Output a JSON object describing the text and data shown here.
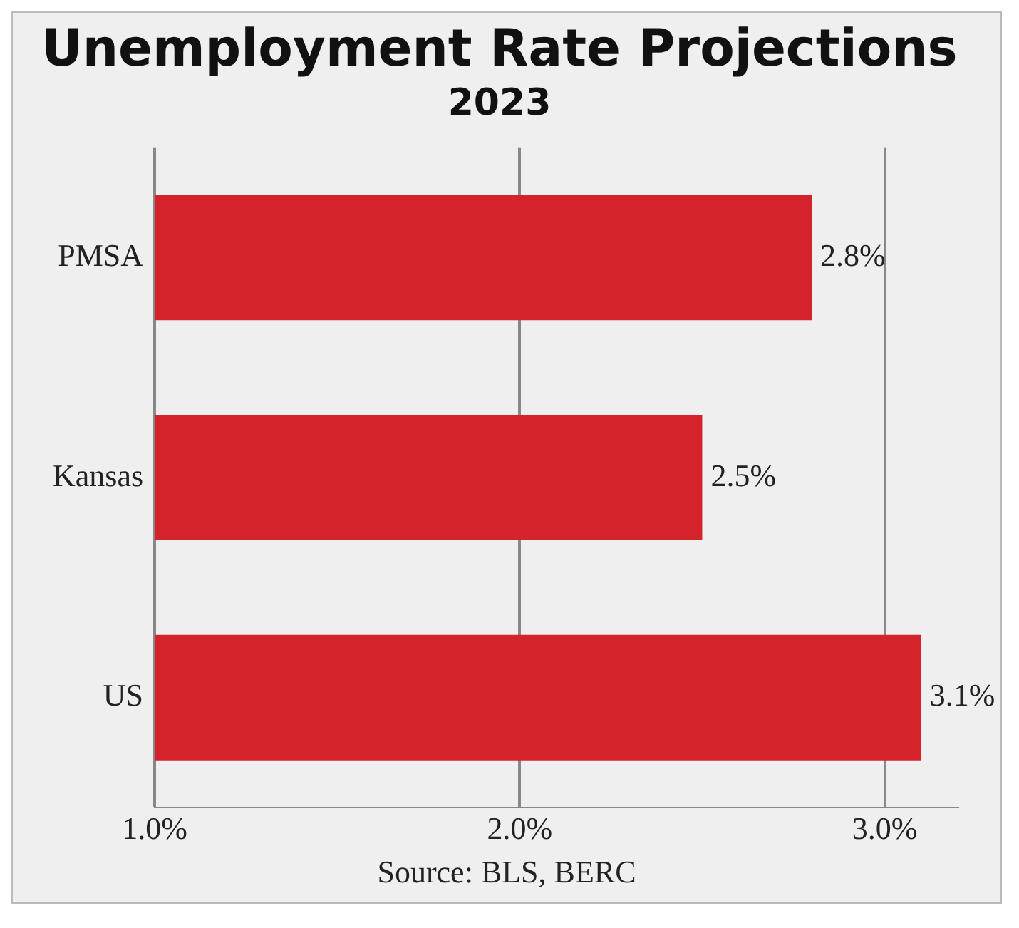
{
  "chart_data": {
    "type": "bar",
    "orientation": "horizontal",
    "title": "Unemployment Rate Projections",
    "subtitle": "2023",
    "categories": [
      "PMSA",
      "Kansas",
      "US"
    ],
    "values": [
      2.8,
      2.5,
      3.1
    ],
    "color": "#d4232b",
    "value_labels": [
      "2.8%",
      "2.5%",
      "3.1%"
    ],
    "xlim": [
      1,
      3.2
    ],
    "xticks": [
      {
        "value": 1,
        "label": "1.0%"
      },
      {
        "value": 2,
        "label": "2.0%"
      },
      {
        "value": 3,
        "label": "3.0%"
      }
    ],
    "grid": "x",
    "legend": false,
    "annotations": [
      "Source: BLS, BERC"
    ]
  }
}
